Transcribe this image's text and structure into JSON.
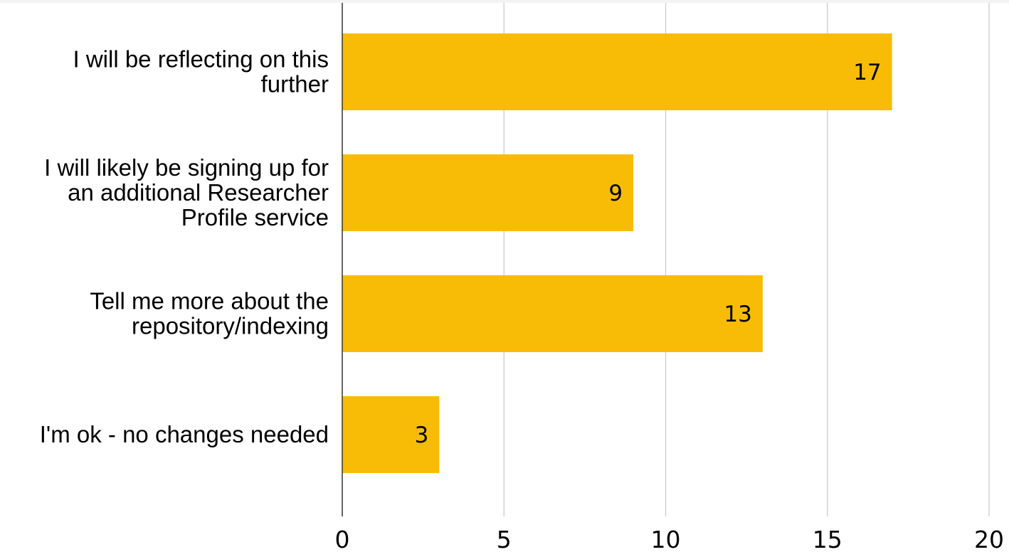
{
  "chart_data": {
    "type": "bar",
    "orientation": "horizontal",
    "title": "",
    "xlabel": "",
    "ylabel": "",
    "categories": [
      {
        "lines": [
          "I will be reflecting on this",
          "further"
        ]
      },
      {
        "lines": [
          "I will likely be signing up for",
          "an additional Researcher",
          "Profile service"
        ]
      },
      {
        "lines": [
          "Tell me more about the",
          "repository/indexing"
        ]
      },
      {
        "lines": [
          "I'm ok - no changes needed"
        ]
      }
    ],
    "values": [
      17,
      9,
      13,
      3
    ],
    "data_labels": [
      "17",
      "9",
      "13",
      "3"
    ],
    "xlim": [
      0,
      20
    ],
    "x_ticks": [
      0,
      5,
      10,
      15,
      20
    ],
    "grid": true,
    "legend": "none",
    "colors": {
      "bar": "#f9bc06"
    }
  }
}
